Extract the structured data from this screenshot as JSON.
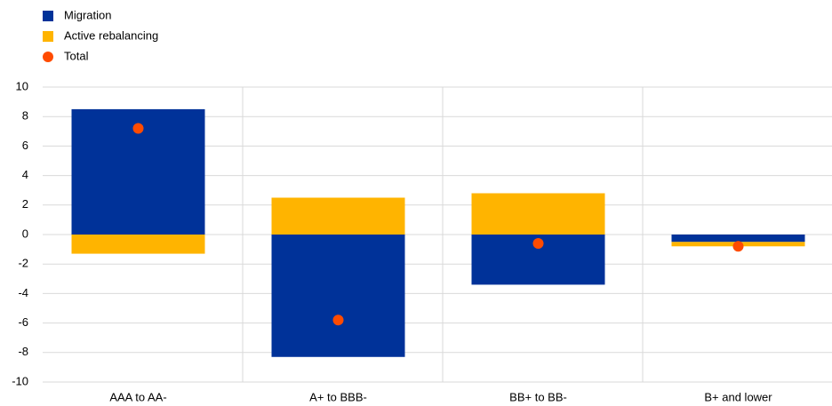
{
  "chart_data": {
    "type": "bar",
    "stacked": true,
    "categories": [
      "AAA to AA-",
      "A+ to BBB-",
      "BB+ to BB-",
      "B+ and lower"
    ],
    "series": [
      {
        "name": "Migration",
        "color": "#003299",
        "type": "bar",
        "values": [
          8.5,
          -8.3,
          -3.4,
          -0.5
        ]
      },
      {
        "name": "Active rebalancing",
        "color": "#ffb400",
        "type": "bar",
        "values": [
          -1.3,
          2.5,
          2.8,
          -0.3
        ]
      },
      {
        "name": "Total",
        "color": "#ff4b00",
        "type": "scatter",
        "values": [
          7.2,
          -5.8,
          -0.6,
          -0.8
        ]
      }
    ],
    "ylim": [
      -10,
      10
    ],
    "yticks": [
      -10,
      -8,
      -6,
      -4,
      -2,
      0,
      2,
      4,
      6,
      8,
      10
    ],
    "grid": true
  }
}
